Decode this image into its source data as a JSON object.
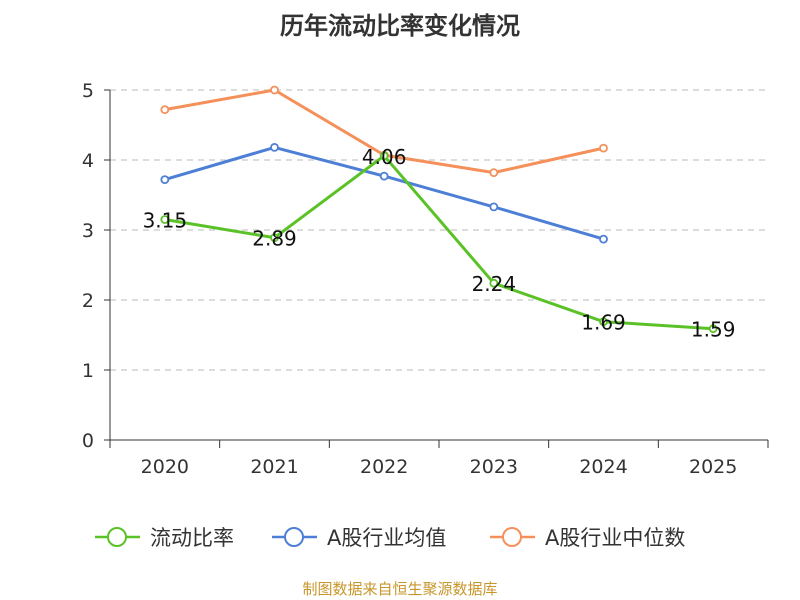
{
  "chart_data": {
    "type": "line",
    "title": "历年流动比率变化情况",
    "categories": [
      "2020",
      "2021",
      "2022",
      "2023",
      "2024",
      "2025"
    ],
    "ylim": [
      0,
      5
    ],
    "yticks": [
      0,
      1,
      2,
      3,
      4,
      5
    ],
    "grid": true,
    "legend_position": "bottom",
    "series": [
      {
        "name": "流动比率",
        "color": "#5ac227",
        "values": [
          3.15,
          2.89,
          4.06,
          2.24,
          1.69,
          1.59
        ],
        "labels": [
          "3.15",
          "2.89",
          "4.06",
          "2.24",
          "1.69",
          "1.59"
        ]
      },
      {
        "name": "A股行业均值",
        "color": "#4d7fd6",
        "values": [
          3.72,
          4.18,
          3.77,
          3.33,
          2.87,
          null
        ]
      },
      {
        "name": "A股行业中位数",
        "color": "#f5905a",
        "values": [
          4.72,
          5.0,
          4.07,
          3.82,
          4.17,
          null
        ]
      }
    ]
  },
  "footer": {
    "source": "制图数据来自恒生聚源数据库"
  }
}
